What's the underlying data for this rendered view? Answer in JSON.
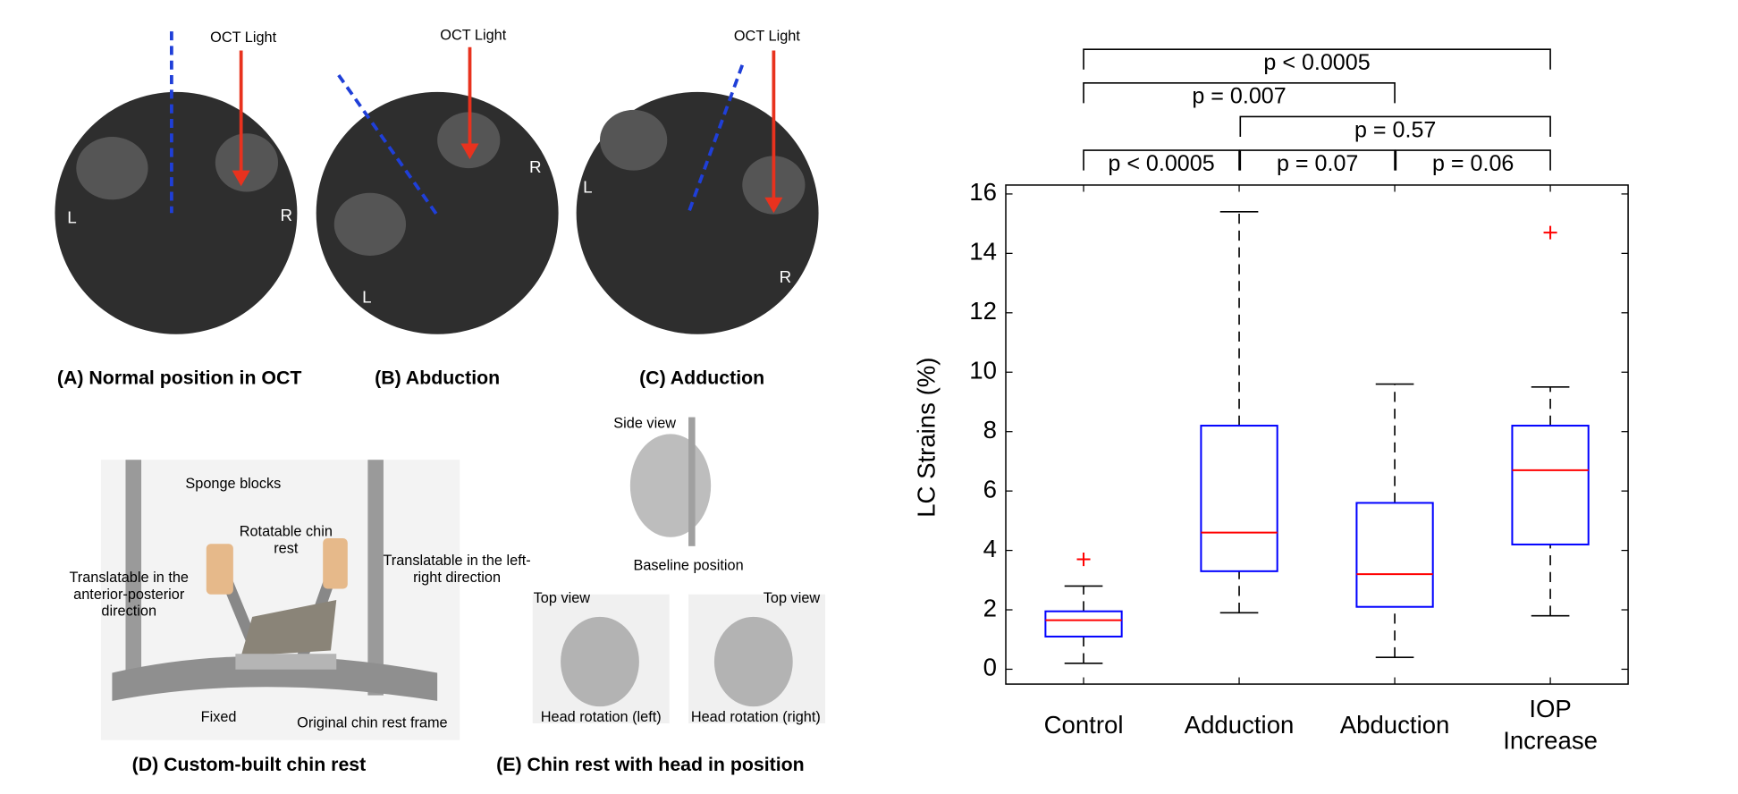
{
  "panels": {
    "a": {
      "beam": "OCT Light",
      "left": "L",
      "right": "R",
      "caption": "(A) Normal position in OCT"
    },
    "b": {
      "beam": "OCT Light",
      "left": "L",
      "right": "R",
      "caption": "(B) Abduction"
    },
    "c": {
      "beam": "OCT Light",
      "left": "L",
      "right": "R",
      "caption": "(C) Adduction"
    },
    "d": {
      "sponge": "Sponge blocks",
      "rotatable": "Rotatable chin rest",
      "ap": "Translatable in the anterior-posterior direction",
      "lr": "Translatable in the left-right direction",
      "fixed": "Fixed",
      "frame": "Original chin rest frame",
      "caption": "(D) Custom-built chin rest"
    },
    "e": {
      "side": "Side view",
      "baseline": "Baseline position",
      "top_left": "Top view",
      "top_right": "Top view",
      "rot_left": "Head rotation (left)",
      "rot_right": "Head rotation (right)",
      "caption": "(E) Chin rest with head in position"
    }
  },
  "chart_data": {
    "type": "box",
    "ylabel": "LC Strains (%)",
    "categories": [
      "Control",
      "Adduction",
      "Abduction",
      "IOP Increase"
    ],
    "boxes": [
      {
        "whislo": 0.2,
        "q1": 1.1,
        "med": 1.65,
        "q3": 1.95,
        "whishi": 2.8,
        "fliers": [
          3.7
        ]
      },
      {
        "whislo": 1.9,
        "q1": 3.3,
        "med": 4.6,
        "q3": 8.2,
        "whishi": 15.4,
        "fliers": []
      },
      {
        "whislo": 0.4,
        "q1": 2.1,
        "med": 3.2,
        "q3": 5.6,
        "whishi": 9.6,
        "fliers": []
      },
      {
        "whislo": 1.8,
        "q1": 4.2,
        "med": 6.7,
        "q3": 8.2,
        "whishi": 9.5,
        "fliers": [
          14.7
        ]
      }
    ],
    "box_color": "#0000ff",
    "median_color": "#ff0000",
    "flier_color": "#ff0000",
    "ylim": [
      -0.5,
      16.3
    ],
    "yticks": [
      0,
      2,
      4,
      6,
      8,
      10,
      12,
      14,
      16
    ],
    "comparisons": [
      "p < 0.0005",
      "p =  0.007",
      "p =  0.57",
      "p < 0.0005",
      "p = 0.07",
      "p = 0.06"
    ]
  }
}
